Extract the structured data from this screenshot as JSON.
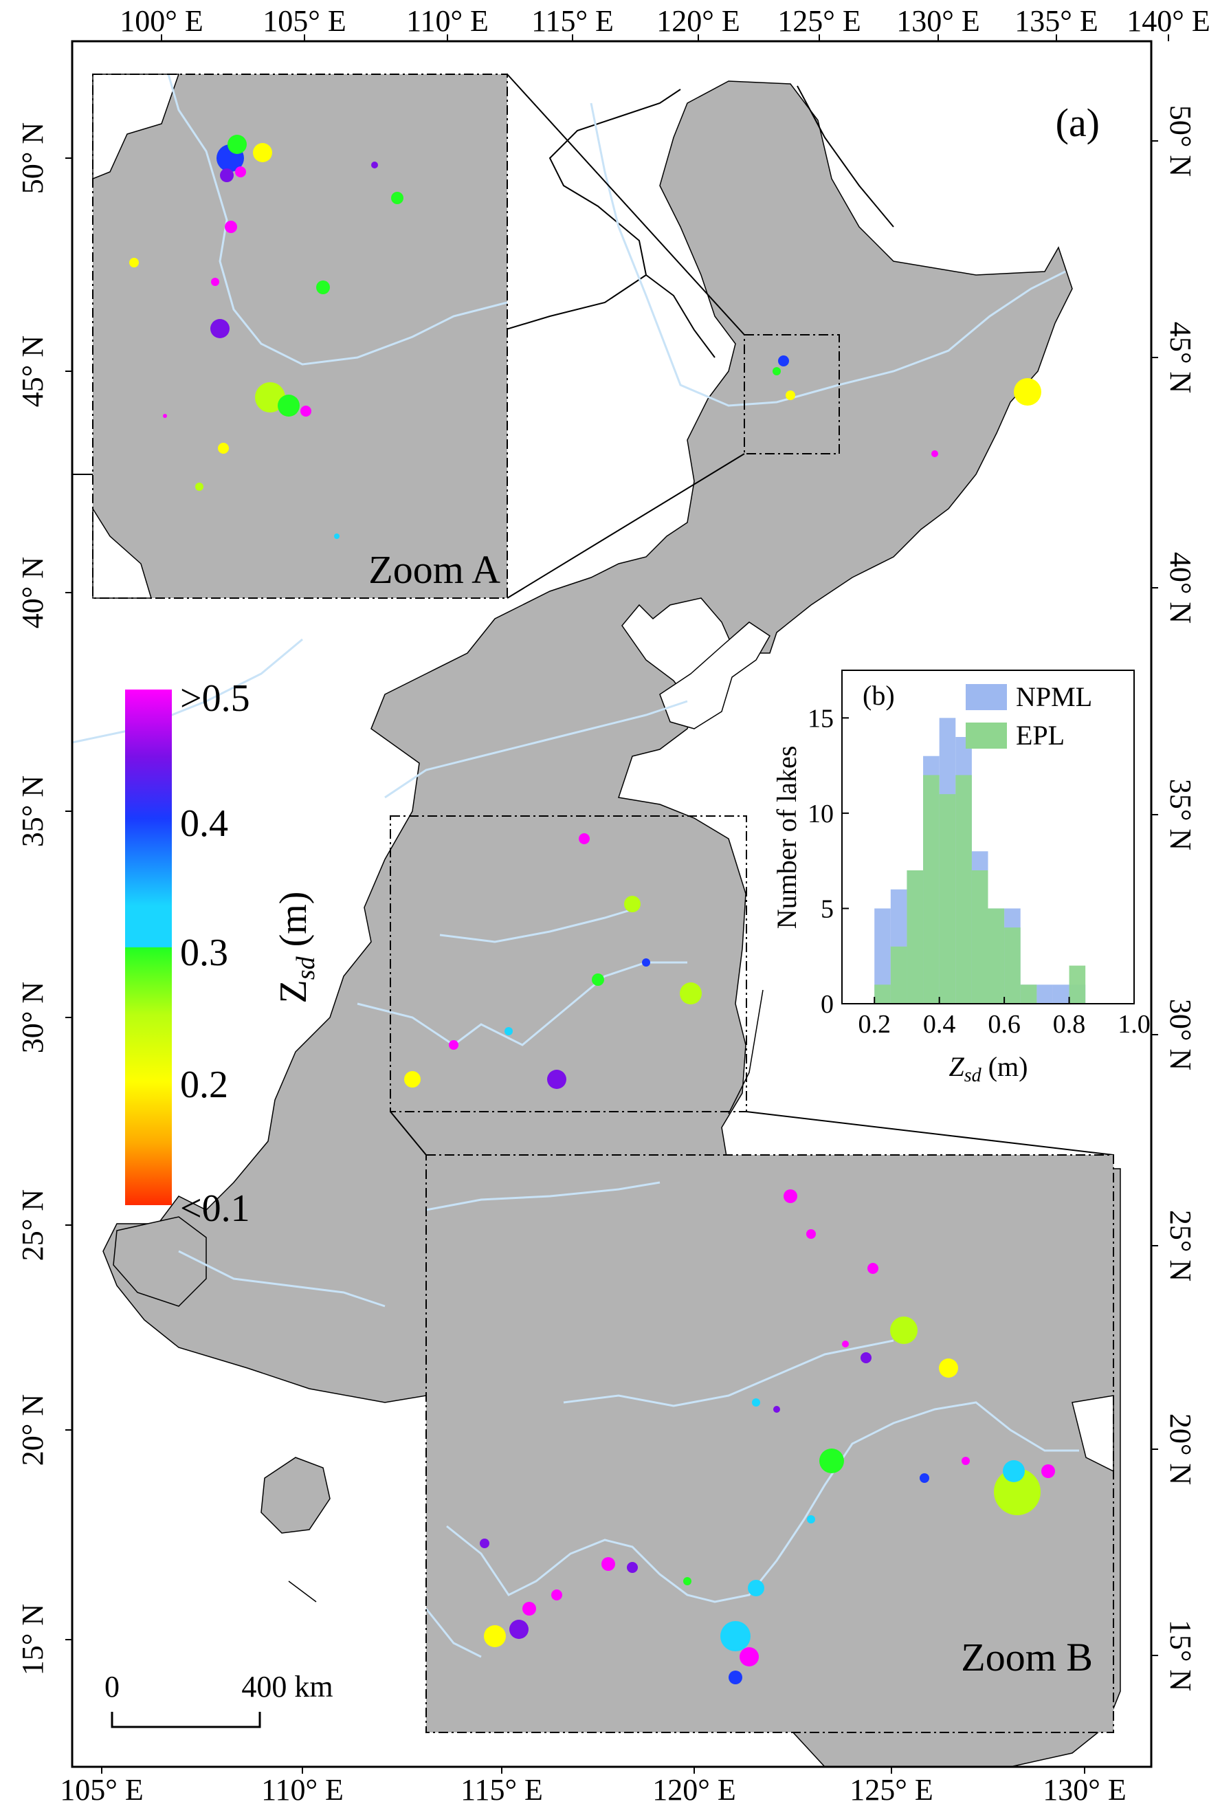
{
  "panel_label": "(a)",
  "axes": {
    "top_lon_labels": [
      "100° E",
      "105° E",
      "110° E",
      "115° E",
      "120° E",
      "125° E",
      "130° E",
      "135° E",
      "140° E"
    ],
    "bottom_lon_labels": [
      "105° E",
      "110° E",
      "115° E",
      "120° E",
      "125° E",
      "130° E"
    ],
    "left_lat_labels": [
      "50° N",
      "45° N",
      "40° N",
      "35° N",
      "30° N",
      "25° N",
      "20° N",
      "15° N"
    ],
    "right_lat_labels": [
      "50° N",
      "45° N",
      "40° N",
      "35° N",
      "30° N",
      "25° N",
      "20° N",
      "15° N"
    ]
  },
  "zoom_labels": {
    "a": "Zoom A",
    "b": "Zoom B"
  },
  "colorbar": {
    "title": "Z",
    "title_sub": "sd",
    "title_unit": " (m)",
    "tick_labels": [
      ">0.5",
      "0.4",
      "0.3",
      "0.2",
      "<0.1"
    ],
    "colors_top_to_bottom": [
      "#ff00ff",
      "#7a10e8",
      "#1a3aff",
      "#1ad6ff",
      "#22ff22",
      "#b8ff10",
      "#ffff00",
      "#ffaa00",
      "#ff2b00"
    ]
  },
  "scalebar": {
    "start_label": "0",
    "end_label": "400 km"
  },
  "chart_data": {
    "type": "bar",
    "panel_label": "(b)",
    "xlabel": "Z",
    "xlabel_sub": "sd",
    "xlabel_unit": " (m)",
    "ylabel": "Number of lakes",
    "xlim": [
      0.1,
      1.0
    ],
    "ylim": [
      0,
      17.5
    ],
    "xticks": [
      "0.2",
      "0.4",
      "0.6",
      "0.8",
      "1.0"
    ],
    "yticks": [
      "0",
      "5",
      "10",
      "15"
    ],
    "bin_starts": [
      0.2,
      0.25,
      0.3,
      0.35,
      0.4,
      0.45,
      0.5,
      0.55,
      0.6,
      0.65,
      0.7,
      0.75,
      0.8
    ],
    "bin_width": 0.05,
    "series": [
      {
        "name": "NPML",
        "color": "#9db8f0",
        "values": [
          5,
          6,
          7,
          13,
          15,
          14,
          8,
          5,
          5,
          1,
          1,
          1,
          1
        ]
      },
      {
        "name": "EPL",
        "color": "#8fd68f",
        "values": [
          1,
          3,
          7,
          12,
          11,
          12,
          7,
          5,
          4,
          1,
          0,
          0,
          2
        ]
      }
    ]
  }
}
